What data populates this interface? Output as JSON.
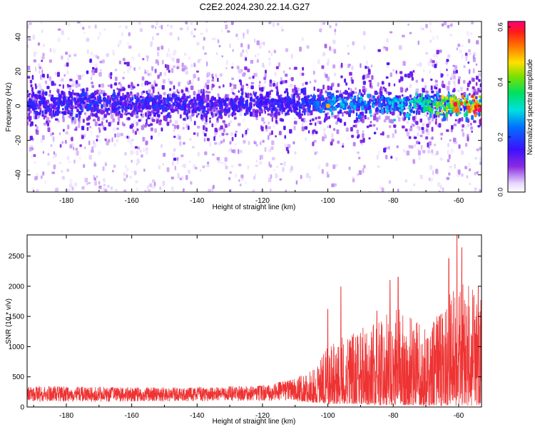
{
  "title": "C2E2.2024.230.22.14.G27",
  "chart_data": [
    {
      "type": "heatmap",
      "xlabel": "Height of straight line (km)",
      "ylabel": "Frequency (Hz)",
      "xlim": [
        -192,
        -53
      ],
      "ylim": [
        -50,
        49
      ],
      "xticks": [
        -180,
        -160,
        -140,
        -120,
        -100,
        -80,
        -60
      ],
      "yticks": [
        -40,
        -20,
        0,
        20,
        40
      ],
      "colorbar": {
        "label": "Normalized spectral amplitude",
        "range": [
          0.0,
          0.62
        ],
        "ticks": [
          0.0,
          0.2,
          0.4,
          0.6
        ],
        "colormap": "rainbow (white → lavender → purple → blue → cyan → green → yellow → red)"
      },
      "ridge": [
        {
          "x": -190,
          "freq": 1,
          "amp": 0.15
        },
        {
          "x": -170,
          "freq": 1,
          "amp": 0.16
        },
        {
          "x": -150,
          "freq": 1,
          "amp": 0.16
        },
        {
          "x": -130,
          "freq": 1,
          "amp": 0.15
        },
        {
          "x": -110,
          "freq": 1,
          "amp": 0.15
        },
        {
          "x": -100,
          "freq": 1,
          "amp": 0.22
        },
        {
          "x": -90,
          "freq": 1,
          "amp": 0.24
        },
        {
          "x": -80,
          "freq": 1,
          "amp": 0.24
        },
        {
          "x": -70,
          "freq": 1,
          "amp": 0.3
        },
        {
          "x": -60,
          "freq": 1,
          "amp": 0.45
        },
        {
          "x": -55,
          "freq": 0,
          "amp": 0.5
        }
      ],
      "peak_points": [
        {
          "x": -100,
          "freq": 0,
          "amp": 0.5
        },
        {
          "x": -61,
          "freq": 1,
          "amp": 0.6
        },
        {
          "x": -57,
          "freq": -1,
          "amp": 0.55
        },
        {
          "x": -54,
          "freq": 0,
          "amp": 0.55
        }
      ]
    },
    {
      "type": "line",
      "xlabel": "Height of straight line (km)",
      "ylabel": "SNR (10 * v/v)",
      "xlim": [
        -192,
        -53
      ],
      "ylim": [
        0,
        2850
      ],
      "xticks": [
        -180,
        -160,
        -140,
        -120,
        -100,
        -80,
        -60
      ],
      "yticks": [
        0,
        500,
        1000,
        1500,
        2000,
        2500
      ],
      "series": [
        {
          "color": "#ee3333",
          "envelope": [
            {
              "x": -192,
              "low": 80,
              "high": 350
            },
            {
              "x": -180,
              "low": 80,
              "high": 340
            },
            {
              "x": -160,
              "low": 90,
              "high": 330
            },
            {
              "x": -140,
              "low": 90,
              "high": 330
            },
            {
              "x": -120,
              "low": 100,
              "high": 360
            },
            {
              "x": -110,
              "low": 100,
              "high": 480
            },
            {
              "x": -105,
              "low": 80,
              "high": 600
            },
            {
              "x": -100,
              "low": 50,
              "high": 1000
            },
            {
              "x": -95,
              "low": 50,
              "high": 1200
            },
            {
              "x": -90,
              "low": 50,
              "high": 1300
            },
            {
              "x": -85,
              "low": 30,
              "high": 1400
            },
            {
              "x": -80,
              "low": 30,
              "high": 1700
            },
            {
              "x": -75,
              "low": 30,
              "high": 1500
            },
            {
              "x": -70,
              "low": 20,
              "high": 1300
            },
            {
              "x": -65,
              "low": 20,
              "high": 1600
            },
            {
              "x": -60,
              "low": 20,
              "high": 2200
            },
            {
              "x": -55,
              "low": 20,
              "high": 1900
            },
            {
              "x": -53,
              "low": 20,
              "high": 2000
            }
          ],
          "spikes": [
            {
              "x": -100,
              "y": 1620
            },
            {
              "x": -96,
              "y": 1990
            },
            {
              "x": -85,
              "y": 1590
            },
            {
              "x": -81,
              "y": 2100
            },
            {
              "x": -78.5,
              "y": 2150
            },
            {
              "x": -74,
              "y": 1250
            },
            {
              "x": -63,
              "y": 2460
            },
            {
              "x": -60.5,
              "y": 2850
            },
            {
              "x": -59,
              "y": 2640
            },
            {
              "x": -54,
              "y": 2000
            }
          ]
        }
      ]
    }
  ]
}
